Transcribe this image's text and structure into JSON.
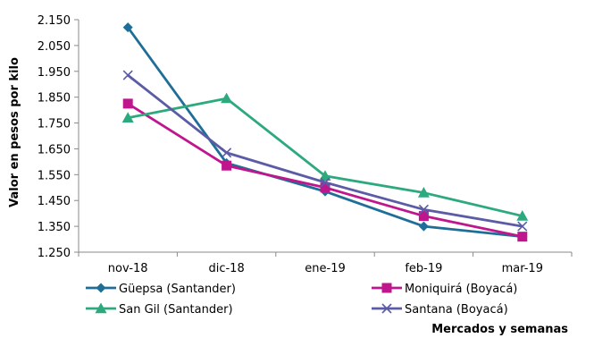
{
  "chart_data": {
    "type": "line",
    "title": "",
    "xlabel": "Mercados y semanas",
    "ylabel": "Valor en pesos por kilo",
    "categories": [
      "nov-18",
      "dic-18",
      "ene-19",
      "feb-19",
      "mar-19"
    ],
    "ylim": [
      1250,
      2150
    ],
    "yticks": [
      1250,
      1350,
      1450,
      1550,
      1650,
      1750,
      1850,
      1950,
      2050,
      2150
    ],
    "ytick_labels": [
      "1.250",
      "1.350",
      "1.450",
      "1.550",
      "1.650",
      "1.750",
      "1.850",
      "1.950",
      "2.050",
      "2.150"
    ],
    "grid": false,
    "legend_position": "bottom",
    "series": [
      {
        "name": "Güepsa (Santander)",
        "color": "#1F6E97",
        "marker": "diamond",
        "values": [
          2120,
          1595,
          1485,
          1350,
          1310
        ]
      },
      {
        "name": "Moniquirá (Boyacá)",
        "color": "#C0168D",
        "marker": "square",
        "values": [
          1825,
          1585,
          1500,
          1390,
          1310
        ]
      },
      {
        "name": "San Gil (Santander)",
        "color": "#2CAA7D",
        "marker": "triangle",
        "values": [
          1770,
          1845,
          1545,
          1480,
          1390
        ]
      },
      {
        "name": "Santana (Boyacá)",
        "color": "#5B5BA6",
        "marker": "x",
        "values": [
          1935,
          1635,
          1520,
          1415,
          1350
        ]
      }
    ]
  }
}
